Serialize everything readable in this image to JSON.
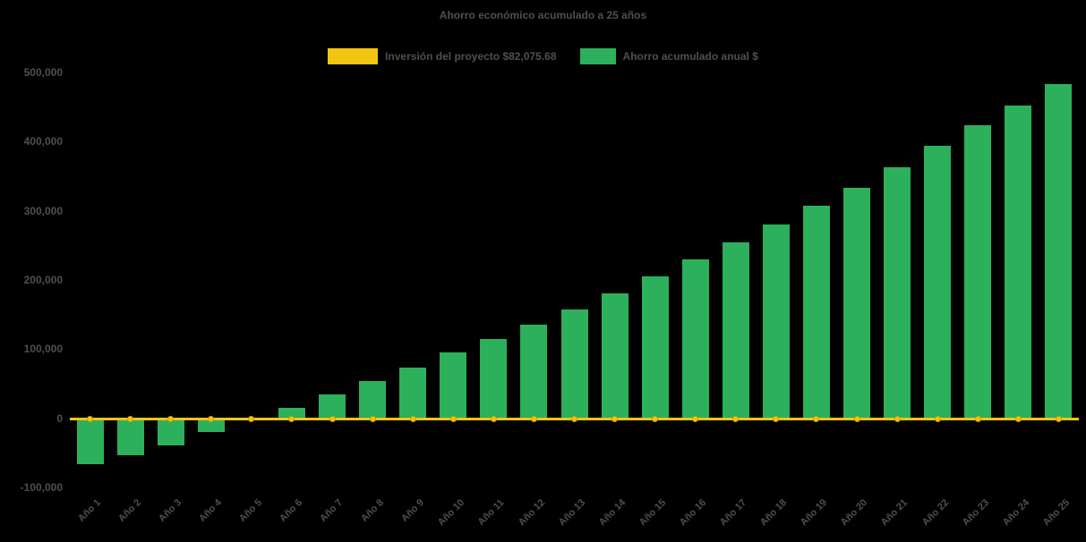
{
  "chart_data": {
    "type": "bar",
    "title": "Ahorro económico acumulado a 25 años",
    "categories": [
      "Año 1",
      "Año 2",
      "Año 3",
      "Año 4",
      "Año 5",
      "Año 6",
      "Año 7",
      "Año 8",
      "Año 9",
      "Año 10",
      "Año 11",
      "Año 12",
      "Año 13",
      "Año 14",
      "Año 15",
      "Año 16",
      "Año 17",
      "Año 18",
      "Año 19",
      "Año 20",
      "Año 21",
      "Año 22",
      "Año 23",
      "Año 24",
      "Año 25"
    ],
    "series": [
      {
        "name": "Inversión del proyecto $82,075.68",
        "type": "line",
        "color": "#f2c511",
        "marker_stroke": "#c79e0d",
        "constant_value": 0
      },
      {
        "name": "Ahorro acumulado anual $",
        "type": "bar",
        "color": "#2cb05c",
        "values": [
          -65000,
          -52000,
          -38000,
          -18000,
          2000,
          16000,
          36000,
          55000,
          75000,
          97000,
          116000,
          137000,
          159000,
          182000,
          207000,
          231000,
          256000,
          281000,
          308000,
          335000,
          364000,
          395000,
          425000,
          453000,
          484000
        ]
      }
    ],
    "ylim": [
      -100000,
      500000
    ],
    "yticks": [
      500000,
      400000,
      300000,
      200000,
      100000,
      0,
      -100000
    ],
    "ytick_labels": [
      "500,000",
      "400,000",
      "300,000",
      "200,000",
      "100,000",
      "0",
      "-100,000"
    ],
    "grid": false,
    "legend_position": "top-center",
    "x_label_rotation_deg": -45
  },
  "colors": {
    "background": "#000000",
    "text": "#4f4f52",
    "bar_green": "#2cb05c",
    "line_yellow": "#f2c511",
    "marker_stroke": "#c79e0d"
  }
}
